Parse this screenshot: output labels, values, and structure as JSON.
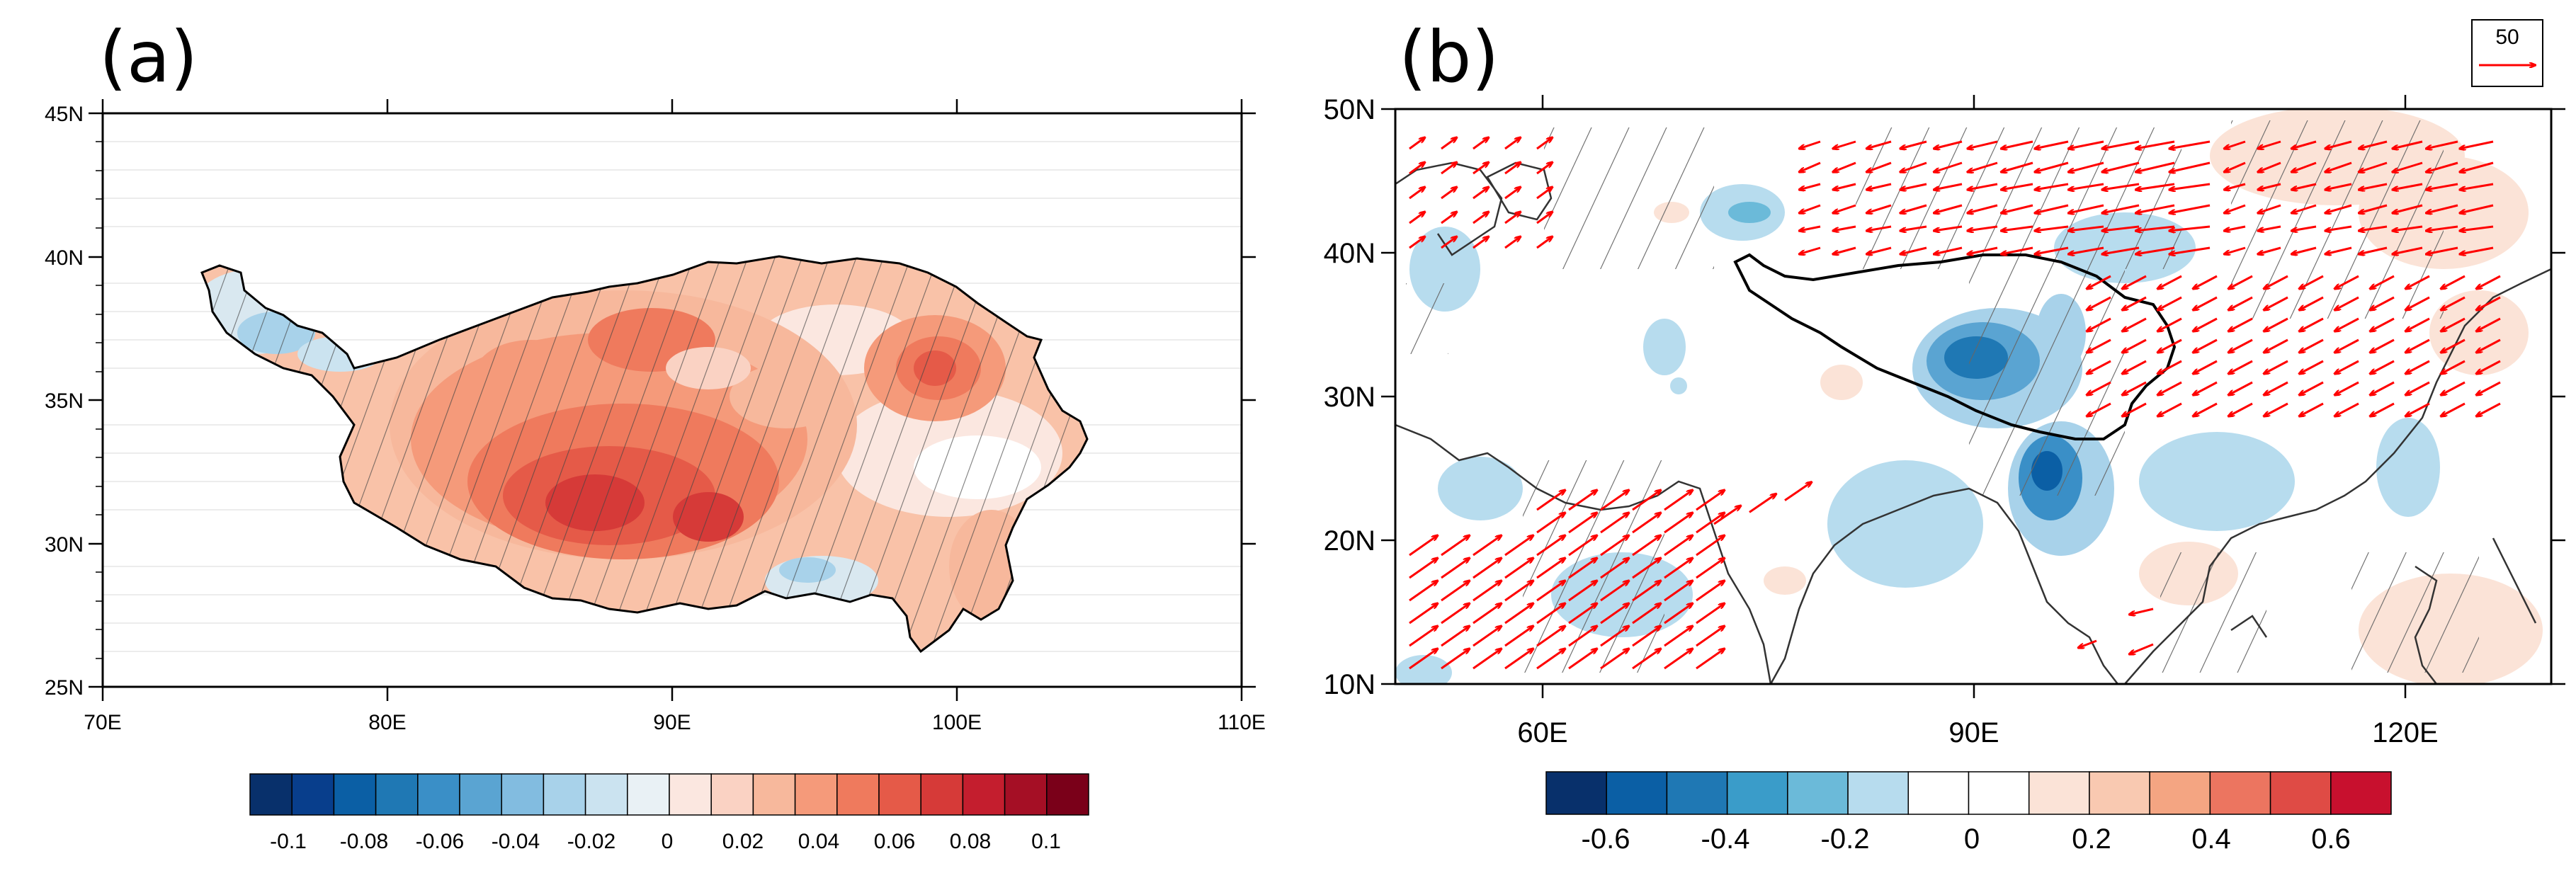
{
  "panel_a": {
    "label": "(a)",
    "lat_labels": [
      "45N",
      "40N",
      "35N",
      "30N",
      "25N"
    ],
    "lon_labels": [
      "70E",
      "80E",
      "90E",
      "100E",
      "110E"
    ],
    "colorbar": {
      "colors": [
        "#08306b",
        "#083e8c",
        "#0b5fa5",
        "#1f78b4",
        "#3a8fc7",
        "#5aa4d2",
        "#82bce0",
        "#a8d2ea",
        "#cbe3f0",
        "#e9f1f5",
        "#fbe7e0",
        "#fad2c3",
        "#f7b89c",
        "#f59a7a",
        "#ef7a5d",
        "#e55a48",
        "#d63a38",
        "#c41e2e",
        "#a50f25",
        "#7a0019"
      ],
      "labels": [
        "-0.1",
        "-0.08",
        "-0.06",
        "-0.04",
        "-0.02",
        "0",
        "0.02",
        "0.04",
        "0.06",
        "0.08",
        "0.1"
      ]
    }
  },
  "panel_b": {
    "label": "(b)",
    "lat_labels": [
      "50N",
      "40N",
      "30N",
      "20N",
      "10N"
    ],
    "lon_labels": [
      "60E",
      "90E",
      "120E"
    ],
    "reference_vector": "50",
    "colorbar": {
      "colors": [
        "#08306b",
        "#0b5fa5",
        "#1f78b4",
        "#3a9cc9",
        "#6bbad9",
        "#b7dcee",
        "#ffffff",
        "#ffffff",
        "#fbe3d7",
        "#f9c9b1",
        "#f4a582",
        "#ec7560",
        "#df4b45",
        "#c8102e"
      ],
      "labels": [
        "-0.6",
        "-0.4",
        "-0.2",
        "0",
        "0.2",
        "0.4",
        "0.6"
      ]
    }
  },
  "colors": {
    "vector": "#ff0000",
    "coast": "#000000",
    "hatch": "#555555"
  }
}
